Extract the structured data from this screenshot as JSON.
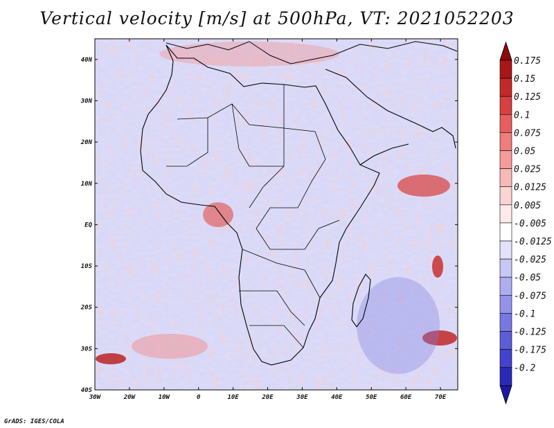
{
  "title": "Vertical velocity [m/s] at 500hPa, VT: 2021052203",
  "credit": "GrADS: IGES/COLA",
  "map": {
    "lon_range": [
      -30,
      75
    ],
    "lat_range": [
      -40,
      45
    ],
    "lon_ticks": [
      {
        "value": -30,
        "label": "30W"
      },
      {
        "value": -20,
        "label": "20W"
      },
      {
        "value": -10,
        "label": "10W"
      },
      {
        "value": 0,
        "label": "0"
      },
      {
        "value": 10,
        "label": "10E"
      },
      {
        "value": 20,
        "label": "20E"
      },
      {
        "value": 30,
        "label": "30E"
      },
      {
        "value": 40,
        "label": "40E"
      },
      {
        "value": 50,
        "label": "50E"
      },
      {
        "value": 60,
        "label": "60E"
      },
      {
        "value": 70,
        "label": "70E"
      }
    ],
    "lat_ticks": [
      {
        "value": 40,
        "label": "40N"
      },
      {
        "value": 30,
        "label": "30N"
      },
      {
        "value": 20,
        "label": "20N"
      },
      {
        "value": 10,
        "label": "10N"
      },
      {
        "value": 0,
        "label": "EQ"
      },
      {
        "value": -10,
        "label": "10S"
      },
      {
        "value": -20,
        "label": "20S"
      },
      {
        "value": -30,
        "label": "30S"
      },
      {
        "value": -40,
        "label": "40S"
      }
    ]
  },
  "colorbar": {
    "levels": [
      {
        "label": "0.175",
        "color": "#a81616"
      },
      {
        "label": "0.15",
        "color": "#c42828"
      },
      {
        "label": "0.125",
        "color": "#d84040"
      },
      {
        "label": "0.1",
        "color": "#e85e5e"
      },
      {
        "label": "0.075",
        "color": "#f07c7c"
      },
      {
        "label": "0.05",
        "color": "#f69a9a"
      },
      {
        "label": "0.025",
        "color": "#f9b8b8"
      },
      {
        "label": "0.0125",
        "color": "#fcd3d3"
      },
      {
        "label": "0.005",
        "color": "#feeaea"
      },
      {
        "label": "-0.005",
        "color": "#ffffff"
      },
      {
        "label": "-0.0125",
        "color": "#e2e2fb"
      },
      {
        "label": "-0.025",
        "color": "#c8c8f6"
      },
      {
        "label": "-0.05",
        "color": "#adadf1"
      },
      {
        "label": "-0.075",
        "color": "#9393ea"
      },
      {
        "label": "-0.1",
        "color": "#7878e2"
      },
      {
        "label": "-0.125",
        "color": "#5d5dd8"
      },
      {
        "label": "-0.175",
        "color": "#4343cc"
      },
      {
        "label": "-0.2",
        "color": "#2a2ab8"
      }
    ],
    "top_arrow_color": "#8c0a0a",
    "bottom_arrow_color": "#1a1aa0"
  }
}
